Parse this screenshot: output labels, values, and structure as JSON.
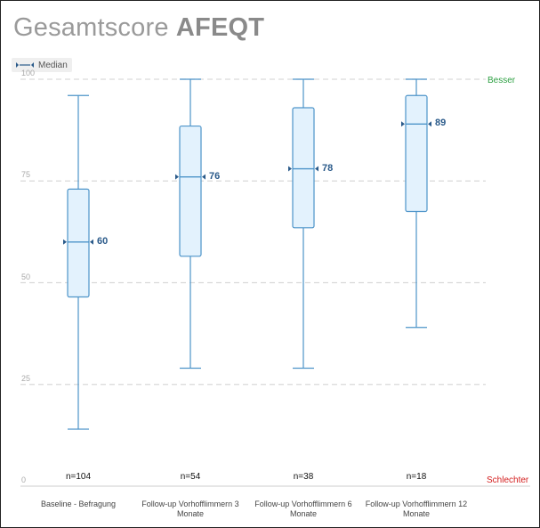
{
  "title": {
    "light": "Gesamtscore ",
    "bold": "AFEQT"
  },
  "legend": {
    "label": "Median"
  },
  "annotations": {
    "top": "Besser",
    "bottom": "Schlechter"
  },
  "colors": {
    "box_fill": "#e3f2fd",
    "box_stroke": "#4d94c9",
    "median_label": "#2a5a8a",
    "grid": "#d9d9d9",
    "better": "#2ea043",
    "worse": "#d42020"
  },
  "chart_data": {
    "type": "boxplot",
    "title": "Gesamtscore AFEQT",
    "ylim": [
      0,
      100
    ],
    "yticks": [
      0,
      25,
      50,
      75,
      100
    ],
    "ytick_labels": [
      "0",
      "25",
      "50",
      "75",
      "100"
    ],
    "grid": true,
    "legend_position": "top-left",
    "categories": [
      "Baseline - Befragung",
      "Follow-up Vorhofflimmern 3\nMonate",
      "Follow-up Vorhofflimmern 6\nMonate",
      "Follow-up Vorhofflimmern 12\nMonate"
    ],
    "n_labels": [
      "n=104",
      "n=54",
      "n=38",
      "n=18"
    ],
    "boxes": [
      {
        "min": 14,
        "q1": 46.5,
        "median": 60,
        "q3": 73,
        "max": 96
      },
      {
        "min": 29,
        "q1": 56.5,
        "median": 76,
        "q3": 88.5,
        "max": 100
      },
      {
        "min": 29,
        "q1": 63.5,
        "median": 78,
        "q3": 93,
        "max": 100
      },
      {
        "min": 39,
        "q1": 67.5,
        "median": 89,
        "q3": 96,
        "max": 100
      }
    ],
    "median_labels": [
      "60",
      "76",
      "78",
      "89"
    ]
  }
}
